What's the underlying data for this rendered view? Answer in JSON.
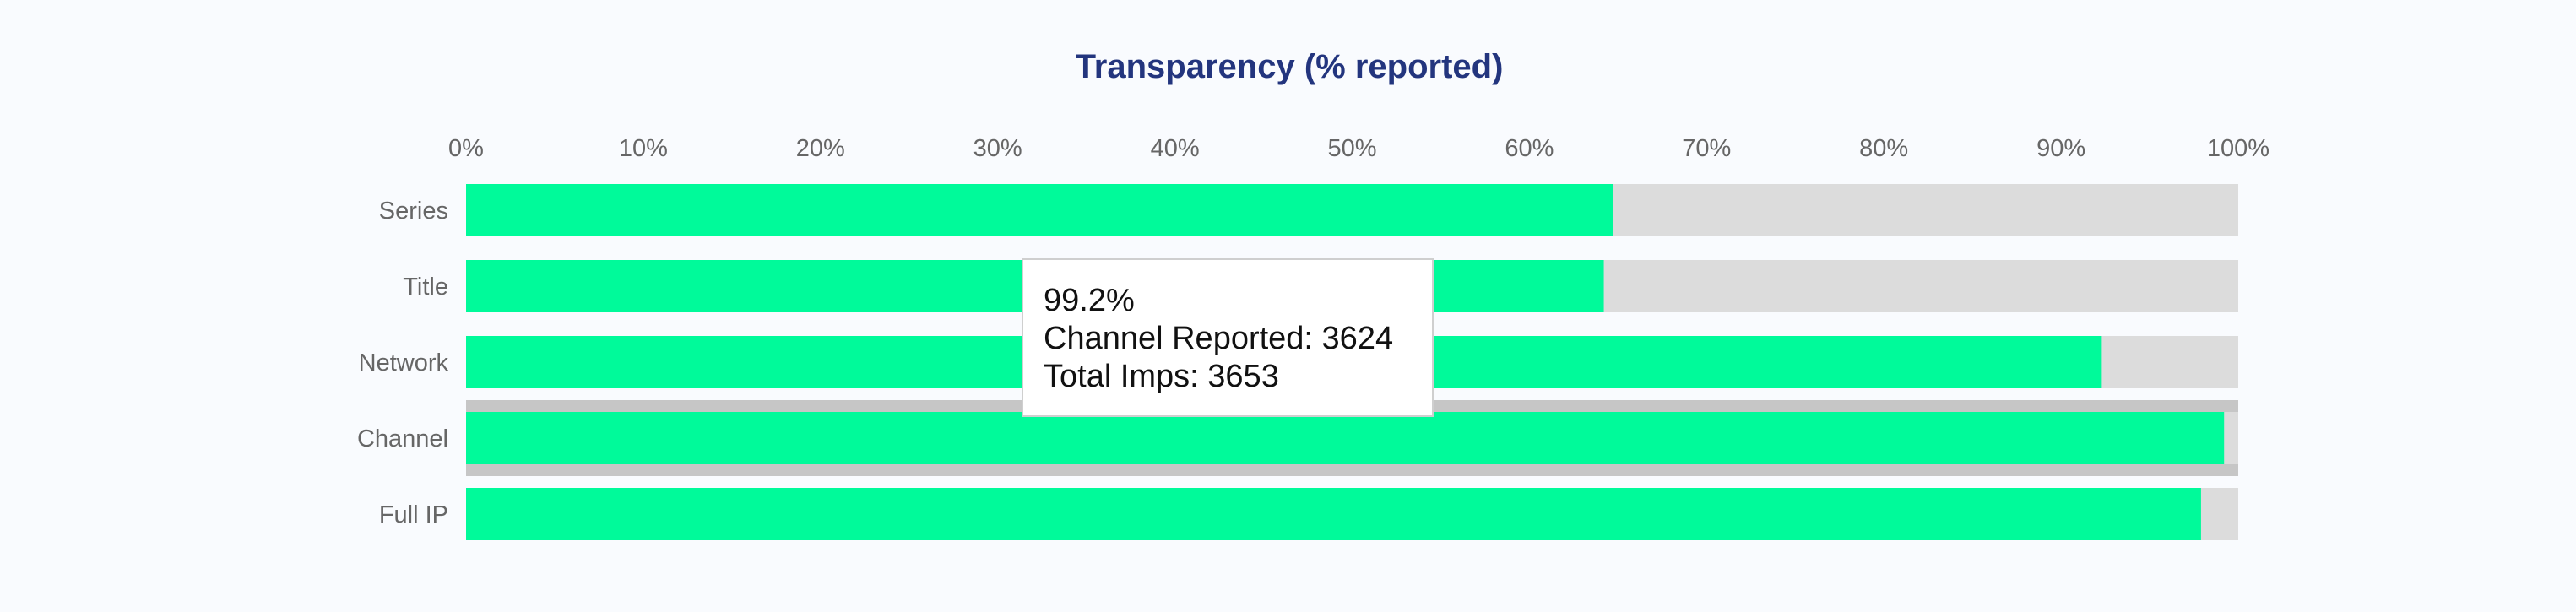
{
  "colors": {
    "bar": "#00fa9a",
    "track": "#dcdcdc",
    "highlight": "#c6c6c6",
    "title": "#23357e",
    "axis_text": "#666666"
  },
  "chart_data": {
    "type": "bar",
    "orientation": "horizontal",
    "title": "Transparency (% reported)",
    "categories": [
      "Series",
      "Title",
      "Network",
      "Channel",
      "Full IP"
    ],
    "values": [
      64.7,
      64.2,
      92.3,
      99.2,
      97.9
    ],
    "xlim": [
      0,
      100
    ],
    "x_ticks": [
      "0%",
      "10%",
      "20%",
      "30%",
      "40%",
      "50%",
      "60%",
      "70%",
      "80%",
      "90%",
      "100%"
    ],
    "x_axis_position": "top",
    "highlighted_category": "Channel"
  },
  "tooltip": {
    "line1": "99.2%",
    "line2": "Channel Reported: 3624",
    "line3": "Total Imps: 3653"
  }
}
